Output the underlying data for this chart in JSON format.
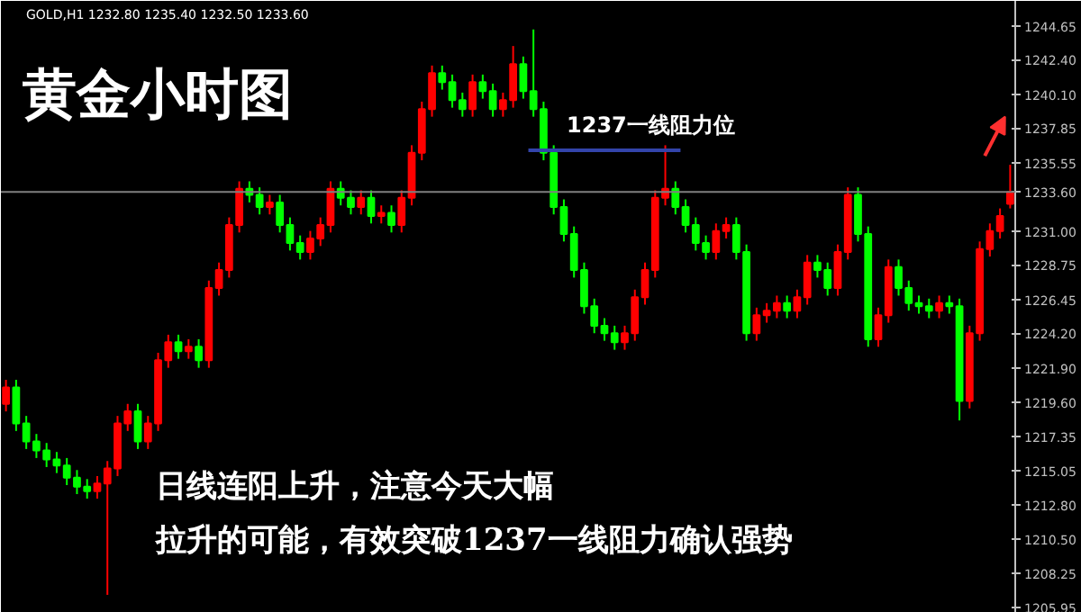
{
  "chart_data": {
    "type": "candlestick",
    "title": "黄金小时图",
    "subtitle": "GOLD,H1  1232.80 1235.40 1232.50 1233.60",
    "annotations": [
      "1237一线阻力位",
      "日线连阳上升，注意今天大幅",
      "拉升的可能，有效突破1237一线阻力确认强势"
    ],
    "categories": [
      null,
      null,
      null,
      null,
      null,
      null,
      null,
      null,
      null,
      null,
      null,
      null,
      null,
      null,
      null,
      null,
      null,
      null,
      null,
      null,
      null,
      null,
      null,
      null,
      null,
      null,
      null,
      null,
      null,
      null,
      null,
      null,
      null,
      null,
      null,
      null,
      null,
      null,
      null,
      null,
      null,
      null,
      null,
      null,
      null,
      null,
      null,
      null,
      null,
      null,
      null,
      null,
      null,
      null,
      null,
      null,
      null,
      null,
      null,
      null,
      null,
      null,
      null,
      null,
      null,
      null,
      null,
      null,
      null,
      null,
      null,
      null,
      null,
      null,
      null,
      null,
      null,
      null,
      null,
      null,
      null,
      null,
      null,
      null,
      null,
      null,
      null,
      null,
      null,
      null,
      null,
      null,
      null,
      null,
      null,
      null,
      null,
      null,
      null,
      null
    ],
    "ohlc": [
      [
        1219.5,
        1221.1,
        1219.0,
        1220.6
      ],
      [
        1220.6,
        1221.1,
        1217.7,
        1218.2
      ],
      [
        1218.2,
        1218.7,
        1216.5,
        1217.0
      ],
      [
        1217.0,
        1217.5,
        1215.9,
        1216.4
      ],
      [
        1216.4,
        1216.9,
        1215.3,
        1215.8
      ],
      [
        1215.8,
        1216.3,
        1214.9,
        1215.4
      ],
      [
        1215.4,
        1215.9,
        1214.1,
        1214.6
      ],
      [
        1214.6,
        1215.1,
        1213.5,
        1214.0
      ],
      [
        1214.0,
        1214.5,
        1213.2,
        1213.7
      ],
      [
        1213.7,
        1214.7,
        1213.2,
        1214.2
      ],
      [
        1214.2,
        1215.7,
        1206.8,
        1215.2
      ],
      [
        1215.2,
        1218.7,
        1214.7,
        1218.2
      ],
      [
        1218.2,
        1219.5,
        1217.7,
        1219.0
      ],
      [
        1219.0,
        1219.5,
        1216.5,
        1217.0
      ],
      [
        1217.0,
        1218.7,
        1216.5,
        1218.2
      ],
      [
        1218.2,
        1222.9,
        1217.7,
        1222.4
      ],
      [
        1222.4,
        1224.1,
        1221.9,
        1223.6
      ],
      [
        1223.6,
        1224.1,
        1222.5,
        1223.0
      ],
      [
        1223.0,
        1223.8,
        1222.5,
        1223.3
      ],
      [
        1223.3,
        1223.8,
        1221.9,
        1222.4
      ],
      [
        1222.4,
        1227.7,
        1221.9,
        1227.2
      ],
      [
        1227.2,
        1228.9,
        1226.7,
        1228.4
      ],
      [
        1228.4,
        1231.9,
        1227.9,
        1231.4
      ],
      [
        1231.4,
        1234.3,
        1230.9,
        1233.8
      ],
      [
        1233.8,
        1234.3,
        1232.9,
        1233.4
      ],
      [
        1233.4,
        1233.9,
        1232.1,
        1232.6
      ],
      [
        1232.6,
        1233.4,
        1232.1,
        1232.9
      ],
      [
        1232.9,
        1233.4,
        1230.9,
        1231.4
      ],
      [
        1231.4,
        1231.9,
        1229.7,
        1230.2
      ],
      [
        1230.2,
        1230.7,
        1229.1,
        1229.6
      ],
      [
        1229.6,
        1231.0,
        1229.1,
        1230.5
      ],
      [
        1230.5,
        1231.9,
        1230.0,
        1231.4
      ],
      [
        1231.4,
        1234.3,
        1230.9,
        1233.8
      ],
      [
        1233.8,
        1234.3,
        1232.7,
        1233.2
      ],
      [
        1233.2,
        1233.7,
        1232.1,
        1232.6
      ],
      [
        1232.6,
        1233.7,
        1232.1,
        1233.2
      ],
      [
        1233.2,
        1233.7,
        1231.5,
        1232.0
      ],
      [
        1232.0,
        1232.7,
        1231.5,
        1232.2
      ],
      [
        1232.2,
        1232.7,
        1230.9,
        1231.4
      ],
      [
        1231.4,
        1233.7,
        1230.9,
        1233.2
      ],
      [
        1233.2,
        1236.7,
        1232.7,
        1236.2
      ],
      [
        1236.2,
        1239.6,
        1235.7,
        1239.1
      ],
      [
        1239.1,
        1242.0,
        1238.6,
        1241.5
      ],
      [
        1241.5,
        1242.0,
        1240.4,
        1240.9
      ],
      [
        1240.9,
        1241.4,
        1239.2,
        1239.7
      ],
      [
        1239.7,
        1240.2,
        1238.6,
        1239.1
      ],
      [
        1239.1,
        1241.4,
        1238.6,
        1240.9
      ],
      [
        1240.9,
        1241.4,
        1239.8,
        1240.3
      ],
      [
        1240.3,
        1240.8,
        1238.6,
        1239.1
      ],
      [
        1239.1,
        1240.2,
        1238.6,
        1239.7
      ],
      [
        1239.7,
        1243.3,
        1239.2,
        1242.1
      ],
      [
        1242.1,
        1242.6,
        1239.8,
        1240.3
      ],
      [
        1240.3,
        1244.4,
        1238.6,
        1239.1
      ],
      [
        1239.1,
        1239.6,
        1235.7,
        1236.2
      ],
      [
        1236.2,
        1236.7,
        1232.1,
        1232.6
      ],
      [
        1232.6,
        1233.1,
        1230.3,
        1230.8
      ],
      [
        1230.8,
        1231.3,
        1227.9,
        1228.4
      ],
      [
        1228.4,
        1228.9,
        1225.5,
        1226.0
      ],
      [
        1226.0,
        1226.5,
        1224.2,
        1224.7
      ],
      [
        1224.7,
        1225.2,
        1223.7,
        1224.2
      ],
      [
        1224.2,
        1224.7,
        1223.1,
        1223.6
      ],
      [
        1223.6,
        1224.7,
        1223.1,
        1224.2
      ],
      [
        1224.2,
        1227.1,
        1223.7,
        1226.6
      ],
      [
        1226.6,
        1228.9,
        1226.1,
        1228.4
      ],
      [
        1228.4,
        1233.7,
        1227.9,
        1233.2
      ],
      [
        1233.2,
        1236.7,
        1232.7,
        1233.8
      ],
      [
        1233.8,
        1234.3,
        1232.1,
        1232.6
      ],
      [
        1232.6,
        1233.1,
        1230.9,
        1231.4
      ],
      [
        1231.4,
        1231.9,
        1229.7,
        1230.2
      ],
      [
        1230.2,
        1230.7,
        1229.1,
        1229.6
      ],
      [
        1229.6,
        1231.5,
        1229.1,
        1231.0
      ],
      [
        1231.0,
        1231.9,
        1230.5,
        1231.4
      ],
      [
        1231.4,
        1231.9,
        1229.1,
        1229.6
      ],
      [
        1229.6,
        1230.1,
        1223.7,
        1224.2
      ],
      [
        1224.2,
        1225.9,
        1223.7,
        1225.4
      ],
      [
        1225.4,
        1226.2,
        1224.9,
        1225.7
      ],
      [
        1225.7,
        1226.7,
        1225.2,
        1226.2
      ],
      [
        1226.2,
        1226.7,
        1225.2,
        1225.7
      ],
      [
        1225.7,
        1227.1,
        1225.2,
        1226.6
      ],
      [
        1226.6,
        1229.4,
        1226.1,
        1228.9
      ],
      [
        1228.9,
        1229.4,
        1227.9,
        1228.4
      ],
      [
        1228.4,
        1228.9,
        1226.7,
        1227.2
      ],
      [
        1227.2,
        1230.1,
        1226.7,
        1229.6
      ],
      [
        1229.6,
        1233.9,
        1229.1,
        1233.4
      ],
      [
        1233.4,
        1233.9,
        1230.3,
        1230.8
      ],
      [
        1230.8,
        1231.3,
        1223.3,
        1223.8
      ],
      [
        1223.8,
        1225.9,
        1223.3,
        1225.4
      ],
      [
        1225.4,
        1229.1,
        1224.9,
        1228.6
      ],
      [
        1228.6,
        1229.1,
        1226.7,
        1227.2
      ],
      [
        1227.2,
        1227.7,
        1225.7,
        1226.2
      ],
      [
        1226.2,
        1226.7,
        1225.5,
        1226.0
      ],
      [
        1226.0,
        1226.5,
        1225.2,
        1225.7
      ],
      [
        1225.7,
        1226.7,
        1225.2,
        1226.2
      ],
      [
        1226.2,
        1226.7,
        1225.5,
        1226.0
      ],
      [
        1226.0,
        1226.5,
        1218.4,
        1219.7
      ],
      [
        1219.7,
        1224.7,
        1219.2,
        1224.2
      ],
      [
        1224.2,
        1230.3,
        1223.7,
        1229.8
      ],
      [
        1229.8,
        1231.5,
        1229.3,
        1231.0
      ],
      [
        1231.0,
        1232.5,
        1230.5,
        1232.0
      ],
      [
        1232.8,
        1235.4,
        1232.5,
        1233.6
      ]
    ],
    "colors": [
      "#ff0000",
      "#00ff00",
      "#00ff00",
      "#00ff00",
      "#00ff00",
      "#00ff00",
      "#00ff00",
      "#00ff00",
      "#00ff00",
      "#ff0000",
      "#ff0000",
      "#ff0000",
      "#ff0000",
      "#00ff00",
      "#ff0000",
      "#ff0000",
      "#ff0000",
      "#00ff00",
      "#ff0000",
      "#00ff00",
      "#ff0000",
      "#ff0000",
      "#ff0000",
      "#ff0000",
      "#00ff00",
      "#00ff00",
      "#ff0000",
      "#00ff00",
      "#00ff00",
      "#00ff00",
      "#ff0000",
      "#ff0000",
      "#ff0000",
      "#00ff00",
      "#00ff00",
      "#ff0000",
      "#00ff00",
      "#ff0000",
      "#00ff00",
      "#ff0000",
      "#ff0000",
      "#ff0000",
      "#ff0000",
      "#00ff00",
      "#00ff00",
      "#00ff00",
      "#ff0000",
      "#00ff00",
      "#00ff00",
      "#ff0000",
      "#ff0000",
      "#00ff00",
      "#00ff00",
      "#00ff00",
      "#00ff00",
      "#00ff00",
      "#00ff00",
      "#00ff00",
      "#00ff00",
      "#00ff00",
      "#00ff00",
      "#ff0000",
      "#ff0000",
      "#ff0000",
      "#ff0000",
      "#ff0000",
      "#00ff00",
      "#00ff00",
      "#00ff00",
      "#00ff00",
      "#ff0000",
      "#ff0000",
      "#00ff00",
      "#00ff00",
      "#ff0000",
      "#ff0000",
      "#ff0000",
      "#00ff00",
      "#ff0000",
      "#ff0000",
      "#00ff00",
      "#00ff00",
      "#ff0000",
      "#ff0000",
      "#00ff00",
      "#00ff00",
      "#ff0000",
      "#ff0000",
      "#00ff00",
      "#00ff00",
      "#00ff00",
      "#00ff00",
      "#ff0000",
      "#00ff00",
      "#00ff00",
      "#ff0000",
      "#ff0000",
      "#ff0000",
      "#ff0000",
      "#ff0000"
    ],
    "ylim": [
      1205.6,
      1246.3
    ],
    "yticks": [
      {
        "value": 1244.65,
        "label": "1244.65"
      },
      {
        "value": 1242.4,
        "label": "1242.40"
      },
      {
        "value": 1240.1,
        "label": "1240.10"
      },
      {
        "value": 1237.85,
        "label": "1237.85"
      },
      {
        "value": 1235.55,
        "label": "1235.55"
      },
      {
        "value": 1233.6,
        "label": "1233.60"
      },
      {
        "value": 1231.0,
        "label": "1231.00"
      },
      {
        "value": 1228.75,
        "label": "1228.75"
      },
      {
        "value": 1226.45,
        "label": "1226.45"
      },
      {
        "value": 1224.2,
        "label": "1224.20"
      },
      {
        "value": 1221.9,
        "label": "1221.90"
      },
      {
        "value": 1219.6,
        "label": "1219.60"
      },
      {
        "value": 1217.35,
        "label": "1217.35"
      },
      {
        "value": 1215.05,
        "label": "1215.05"
      },
      {
        "value": 1212.8,
        "label": "1212.80"
      },
      {
        "value": 1210.5,
        "label": "1210.50"
      },
      {
        "value": 1208.25,
        "label": "1208.25"
      },
      {
        "value": 1205.95,
        "label": "1205.95"
      }
    ],
    "ref_lines": [
      {
        "axis": "y",
        "value": 1233.6,
        "label": null,
        "color": "#7f7f7f"
      }
    ],
    "grid": false,
    "tick_labels": "y"
  }
}
